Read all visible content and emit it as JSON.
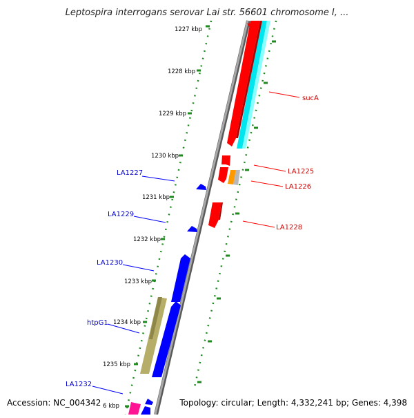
{
  "map": {
    "title": "Leptospira interrogans serovar Lai str. 56601 chromosome I, ...",
    "accession": "Accession: NC_004342",
    "summary": "Topology: circular; Length: 4,332,241 bp; Genes: 4,398",
    "colors": {
      "backbone": "#8c8c8c",
      "tick": "#1f8a1f",
      "forward_gene": "#0000ff",
      "reverse_gene": "#ff0000",
      "forward_label": "#0000cc",
      "reverse_label": "#cc0000",
      "sucA_track": "#00ffff",
      "htpG1": "#b8b070",
      "LA1226": "#ff9900",
      "LA1232_partial": "#ff1493"
    },
    "scale_labels": [
      "1227 kbp",
      "1228 kbp",
      "1229 kbp",
      "1230 kbp",
      "1231 kbp",
      "1232 kbp",
      "1233 kbp",
      "1234 kbp",
      "1235 kbp",
      "6 kbp"
    ],
    "forward_genes": [
      "LA1227",
      "LA1229",
      "LA1230",
      "htpG1",
      "LA1232"
    ],
    "reverse_genes": [
      "sucA",
      "LA1225",
      "LA1226",
      "LA1228"
    ]
  }
}
